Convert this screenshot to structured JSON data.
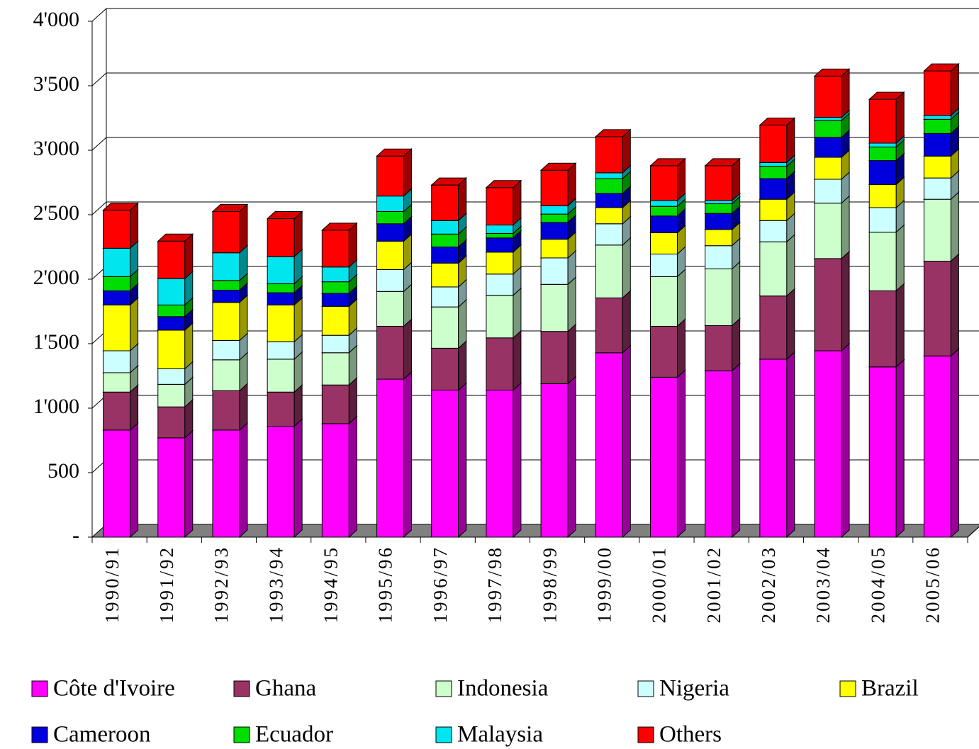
{
  "chart_data": {
    "type": "bar3d_stacked",
    "categories": [
      "1990/91",
      "1991/92",
      "1992/93",
      "1993/94",
      "1994/95",
      "1995/96",
      "1996/97",
      "1997/98",
      "1998/99",
      "1999/00",
      "2000/01",
      "2001/02",
      "2002/03",
      "2003/04",
      "2004/05",
      "2005/06"
    ],
    "series": [
      {
        "name": "Côte d'Ivoire",
        "color": "#ff00ff",
        "values": [
          830,
          770,
          830,
          860,
          880,
          1225,
          1140,
          1140,
          1190,
          1430,
          1240,
          1290,
          1380,
          1445,
          1320,
          1405
        ]
      },
      {
        "name": "Ghana",
        "color": "#993366",
        "values": [
          295,
          240,
          305,
          265,
          300,
          410,
          325,
          405,
          405,
          425,
          395,
          350,
          490,
          715,
          590,
          735
        ]
      },
      {
        "name": "Indonesia",
        "color": "#ccffcc",
        "values": [
          150,
          175,
          240,
          255,
          250,
          270,
          320,
          330,
          365,
          410,
          385,
          440,
          420,
          430,
          455,
          480
        ]
      },
      {
        "name": "Nigeria",
        "color": "#ccffff",
        "values": [
          170,
          120,
          150,
          135,
          135,
          170,
          155,
          165,
          205,
          165,
          175,
          180,
          165,
          185,
          190,
          165
        ]
      },
      {
        "name": "Brazil",
        "color": "#ffff00",
        "values": [
          355,
          300,
          295,
          285,
          225,
          220,
          185,
          170,
          145,
          125,
          165,
          125,
          165,
          170,
          180,
          170
        ]
      },
      {
        "name": "Cameroon",
        "color": "#0000dd",
        "values": [
          110,
          105,
          95,
          95,
          100,
          135,
          125,
          110,
          130,
          110,
          130,
          125,
          160,
          155,
          185,
          175
        ]
      },
      {
        "name": "Ecuador",
        "color": "#00dd00",
        "values": [
          110,
          90,
          75,
          70,
          90,
          95,
          100,
          35,
          65,
          115,
          75,
          75,
          95,
          130,
          105,
          110
        ]
      },
      {
        "name": "Malaysia",
        "color": "#00e5ee",
        "values": [
          220,
          205,
          215,
          210,
          115,
          120,
          105,
          65,
          65,
          45,
          45,
          25,
          30,
          25,
          30,
          30
        ]
      },
      {
        "name": "Others",
        "color": "#ff0000",
        "values": [
          295,
          290,
          320,
          295,
          285,
          310,
          275,
          290,
          275,
          280,
          270,
          270,
          290,
          320,
          340,
          345
        ]
      }
    ],
    "ylim": [
      0,
      4000
    ],
    "yticks": [
      {
        "value": 0,
        "label": "-"
      },
      {
        "value": 500,
        "label": "500"
      },
      {
        "value": 1000,
        "label": "1'000"
      },
      {
        "value": 1500,
        "label": "1'500"
      },
      {
        "value": 2000,
        "label": "2'000"
      },
      {
        "value": 2500,
        "label": "2'500"
      },
      {
        "value": 3000,
        "label": "3'000"
      },
      {
        "value": 3500,
        "label": "3'500"
      },
      {
        "value": 4000,
        "label": "4'000"
      }
    ],
    "grid": true
  }
}
